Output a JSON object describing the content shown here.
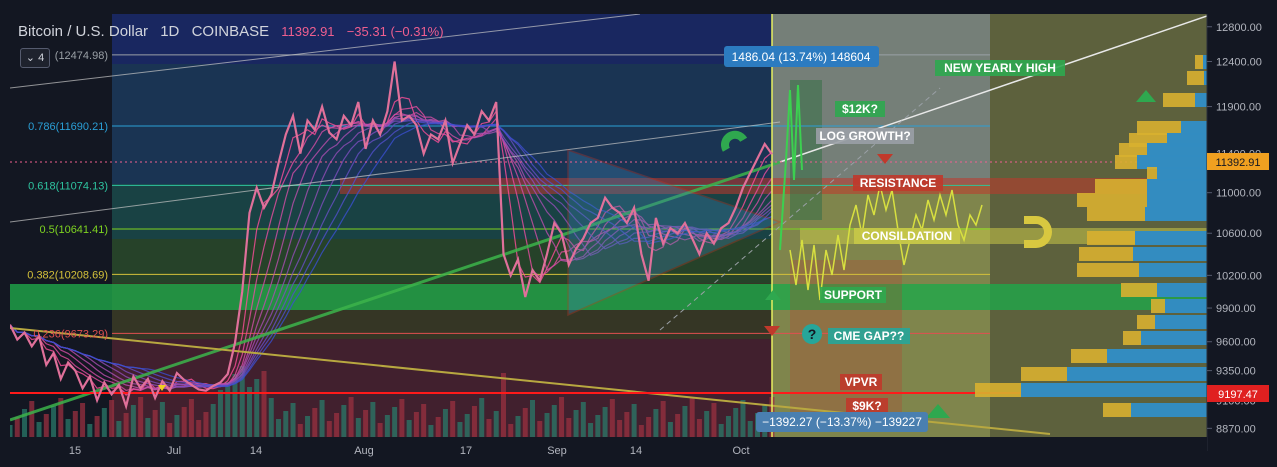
{
  "header": {
    "symbol": "Bitcoin / U.S. Dollar",
    "interval": "1D",
    "exchange": "COINBASE",
    "last_price": "11392.91",
    "change": "−35.31 (−0.31%)",
    "indicator_badge": "⌄ 4"
  },
  "colors": {
    "background": "#131722",
    "price_line": "#e0709a",
    "support": "#1fa84a",
    "resistance": "#c0392b",
    "consolidation": "#c8c848",
    "ribbon_fast": "#ff4d9a",
    "ribbon_slow": "#3a4fd0",
    "trend_green": "#3cb44b",
    "trend_yellow": "#b8a840"
  },
  "chart_data": {
    "type": "line",
    "y_scale": "log",
    "ylim": [
      8800,
      12950
    ],
    "y_ticks": [
      "12800.00",
      "12400.00",
      "11900.00",
      "11400.00",
      "11000.00",
      "10600.00",
      "10200.00",
      "9900.00",
      "9600.00",
      "9350.00",
      "9100.00",
      "8870.00"
    ],
    "x_ticks": [
      "15",
      "Jul",
      "14",
      "Aug",
      "17",
      "Sep",
      "14",
      "Oct"
    ],
    "price_label": "11392.91",
    "level_label": "9197.47",
    "fib_levels": [
      {
        "label": "(12474.98)",
        "value": 12474.98,
        "color": "#9aa0a6"
      },
      {
        "label": "0.786(11690.21)",
        "value": 11690.21,
        "color": "#2a9fd6"
      },
      {
        "label": "0.618(11074.13)",
        "value": 11074.13,
        "color": "#2ec4a0"
      },
      {
        "label": "0.5(10641.41)",
        "value": 10641.41,
        "color": "#7ed321"
      },
      {
        "label": "0.382(10208.69)",
        "value": 10208.69,
        "color": "#d4c13a"
      },
      {
        "label": "0.236(9673.29)",
        "value": 9673.29,
        "color": "#e05050"
      }
    ],
    "measure_up": "1486.04 (13.74%) 148604",
    "measure_down": "−1392.27 (−13.37%) −139227",
    "annotations": [
      {
        "text": "NEW YEARLY HIGH",
        "color": "#2fa84f"
      },
      {
        "text": "$12K?",
        "color": "#2fa84f"
      },
      {
        "text": "LOG GROWTH?",
        "color": "#9aa0a6"
      },
      {
        "text": "RESISTANCE",
        "color": "#c0392b"
      },
      {
        "text": "CONSILDATION",
        "color": "#c8c848"
      },
      {
        "text": "SUPPORT",
        "color": "#2fa84f"
      },
      {
        "text": "CME GAP??",
        "color": "#26a69a"
      },
      {
        "text": "VPVR",
        "color": "#c0392b"
      },
      {
        "text": "$9K?",
        "color": "#c0392b"
      }
    ],
    "series": [
      {
        "values": [
          9750,
          9620,
          9680,
          9560,
          9650,
          9400,
          9500,
          9280,
          9420,
          9350,
          9200,
          9300,
          9100,
          9250,
          9150,
          9230,
          9050,
          9300,
          9200,
          9280,
          9120,
          9260,
          9180,
          9330,
          9270,
          9230,
          9190,
          9180,
          9220,
          9250,
          9320,
          9590,
          10050,
          10800,
          11050,
          10850,
          10980,
          11300,
          11600,
          11800,
          11400,
          11750,
          11650,
          11900,
          11620,
          11550,
          11800,
          11700,
          11950,
          11450,
          11750,
          11600,
          11850,
          12400,
          11750,
          11800,
          11700,
          11400,
          11600,
          11550,
          11750,
          11300,
          11500,
          11700,
          11600,
          11850,
          11750,
          11950,
          10400,
          10200,
          10350,
          10000,
          10250,
          10150,
          10400,
          10700,
          10600,
          10300,
          10450,
          10550,
          10700,
          10750,
          10950,
          10850,
          10800,
          10700,
          10850,
          10400,
          10150,
          10750,
          10500,
          10650,
          10600,
          10700,
          10550,
          10400,
          10600,
          10500,
          10650,
          10700,
          10850,
          11050,
          11200,
          11350,
          11500,
          11392.91
        ]
      }
    ]
  }
}
